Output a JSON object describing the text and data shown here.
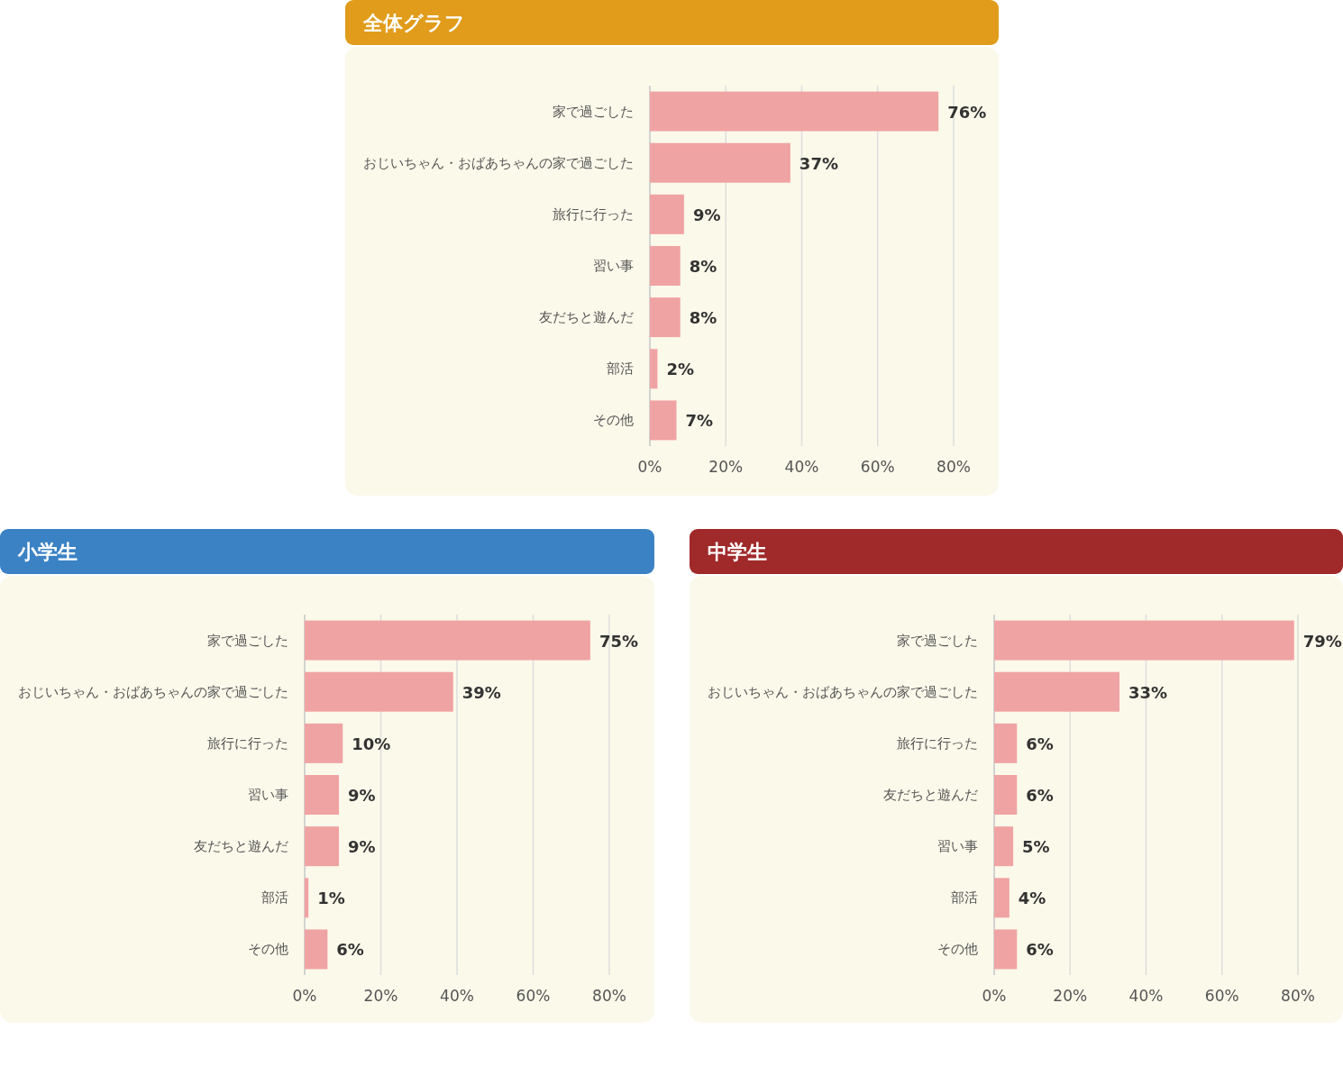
{
  "chart_data": [
    {
      "type": "bar",
      "orientation": "horizontal",
      "title": "全体グラフ",
      "categories": [
        "家で過ごした",
        "おじいちゃん・おばあちゃんの家で過ごした",
        "旅行に行った",
        "習い事",
        "友だちと遊んだ",
        "部活",
        "その他"
      ],
      "values": [
        76,
        37,
        9,
        8,
        8,
        2,
        7
      ],
      "value_labels": [
        "76%",
        "37%",
        "9%",
        "8%",
        "8%",
        "2%",
        "7%"
      ],
      "color": "#f0a3a3",
      "xlim": [
        0,
        80
      ],
      "xticks": [
        {
          "value": 0,
          "label": "0%"
        },
        {
          "value": 20,
          "label": "20%"
        },
        {
          "value": 40,
          "label": "40%"
        },
        {
          "value": 60,
          "label": "60%"
        },
        {
          "value": 80,
          "label": "80%"
        }
      ],
      "grid": "x"
    },
    {
      "type": "bar",
      "orientation": "horizontal",
      "title": "小学生",
      "categories": [
        "家で過ごした",
        "おじいちゃん・おばあちゃんの家で過ごした",
        "旅行に行った",
        "習い事",
        "友だちと遊んだ",
        "部活",
        "その他"
      ],
      "values": [
        75,
        39,
        10,
        9,
        9,
        1,
        6
      ],
      "value_labels": [
        "75%",
        "39%",
        "10%",
        "9%",
        "9%",
        "1%",
        "6%"
      ],
      "color": "#f0a3a3",
      "xlim": [
        0,
        80
      ],
      "xticks": [
        {
          "value": 0,
          "label": "0%"
        },
        {
          "value": 20,
          "label": "20%"
        },
        {
          "value": 40,
          "label": "40%"
        },
        {
          "value": 60,
          "label": "60%"
        },
        {
          "value": 80,
          "label": "80%"
        }
      ],
      "grid": "x"
    },
    {
      "type": "bar",
      "orientation": "horizontal",
      "title": "中学生",
      "categories": [
        "家で過ごした",
        "おじいちゃん・おばあちゃんの家で過ごした",
        "旅行に行った",
        "友だちと遊んだ",
        "習い事",
        "部活",
        "その他"
      ],
      "values": [
        79,
        33,
        6,
        6,
        5,
        4,
        6
      ],
      "value_labels": [
        "79%",
        "33%",
        "6%",
        "6%",
        "5%",
        "4%",
        "6%"
      ],
      "color": "#f0a3a3",
      "xlim": [
        0,
        80
      ],
      "xticks": [
        {
          "value": 0,
          "label": "0%"
        },
        {
          "value": 20,
          "label": "20%"
        },
        {
          "value": 40,
          "label": "40%"
        },
        {
          "value": 60,
          "label": "60%"
        },
        {
          "value": 80,
          "label": "80%"
        }
      ],
      "grid": "x"
    }
  ]
}
